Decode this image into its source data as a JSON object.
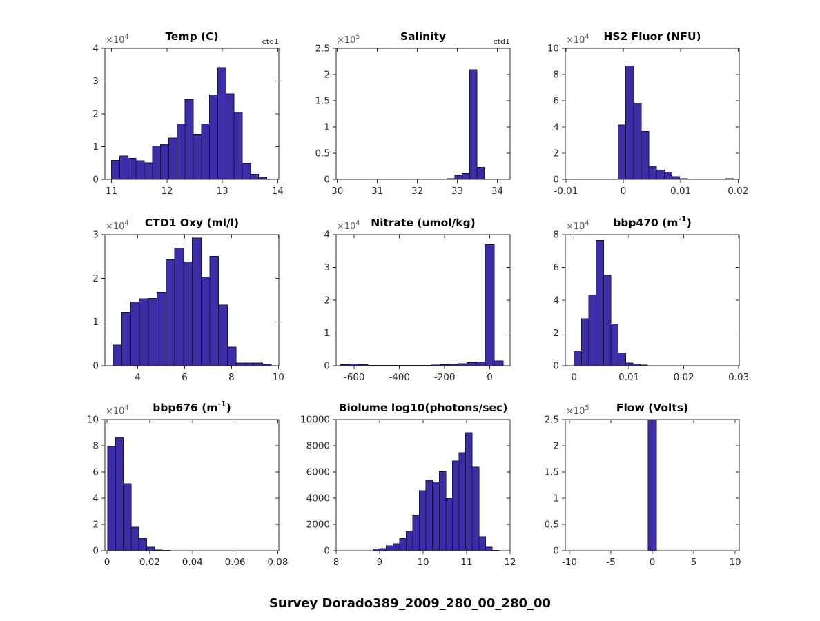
{
  "figure": {
    "title": "Survey Dorado389_2009_280_00_280_00"
  },
  "colors": {
    "bar_fill": "#3b2da6",
    "bar_edge": "#1a1440",
    "axis": "#2b2b2b",
    "tick_label": "#2b2b2b",
    "exponent": "#5a5a5a",
    "corner_label": "#2b2b2b",
    "title": "#000000",
    "background": "#ffffff"
  },
  "chart_data": [
    {
      "type": "bar",
      "name": "temp-c",
      "title": {
        "pre": "Temp (C)",
        "sup": "",
        "post": ""
      },
      "corner_label": "ctd1",
      "y_exponent": {
        "base": "×10",
        "power": "4"
      },
      "xlim": [
        10.88,
        14.02
      ],
      "ylim": [
        0,
        4
      ],
      "xticks": {
        "values": [
          11,
          12,
          13,
          14
        ],
        "labels": [
          "11",
          "12",
          "13",
          "14"
        ]
      },
      "yticks": {
        "values": [
          0,
          1,
          2,
          3,
          4
        ],
        "labels": [
          "0",
          "1",
          "2",
          "3",
          "4"
        ]
      },
      "bin_width": 0.1475,
      "bars": [
        [
          11.0,
          0.58
        ],
        [
          11.1475,
          0.72
        ],
        [
          11.295,
          0.64
        ],
        [
          11.4425,
          0.57
        ],
        [
          11.59,
          0.51
        ],
        [
          11.7375,
          1.02
        ],
        [
          11.885,
          1.07
        ],
        [
          12.0325,
          1.26
        ],
        [
          12.18,
          1.7
        ],
        [
          12.3275,
          2.43
        ],
        [
          12.475,
          1.38
        ],
        [
          12.6225,
          1.7
        ],
        [
          12.77,
          2.58
        ],
        [
          12.9175,
          3.41
        ],
        [
          13.065,
          2.61
        ],
        [
          13.2125,
          2.05
        ],
        [
          13.36,
          0.5
        ],
        [
          13.5075,
          0.16
        ],
        [
          13.655,
          0.06
        ],
        [
          13.8025,
          0.015
        ]
      ]
    },
    {
      "type": "bar",
      "name": "salinity",
      "title": {
        "pre": "Salinity",
        "sup": "",
        "post": ""
      },
      "corner_label": "ctd1",
      "y_exponent": {
        "base": "×10",
        "power": "5"
      },
      "xlim": [
        29.97,
        34.32
      ],
      "ylim": [
        0,
        2.5
      ],
      "xticks": {
        "values": [
          30,
          31,
          32,
          33,
          34
        ],
        "labels": [
          "30",
          "31",
          "32",
          "33",
          "34"
        ]
      },
      "yticks": {
        "values": [
          0,
          0.5,
          1,
          1.5,
          2,
          2.5
        ],
        "labels": [
          "0",
          "0.5",
          "1",
          "1.5",
          "2",
          "2.5"
        ]
      },
      "bin_width": 0.183,
      "bars": [
        [
          32.76,
          0.015
        ],
        [
          32.943,
          0.08
        ],
        [
          33.126,
          0.11
        ],
        [
          33.309,
          2.09
        ],
        [
          33.492,
          0.23
        ]
      ]
    },
    {
      "type": "bar",
      "name": "hs2-fluor-nfu",
      "title": {
        "pre": "HS2 Fluor (NFU)",
        "sup": "",
        "post": ""
      },
      "corner_label": "",
      "y_exponent": {
        "base": "×10",
        "power": "4"
      },
      "xlim": [
        -0.0101,
        0.0202
      ],
      "ylim": [
        0,
        10
      ],
      "xticks": {
        "values": [
          -0.01,
          0,
          0.01,
          0.02
        ],
        "labels": [
          "-0.01",
          "0",
          "0.01",
          "0.02"
        ]
      },
      "yticks": {
        "values": [
          0,
          2,
          4,
          6,
          8,
          10
        ],
        "labels": [
          "0",
          "2",
          "4",
          "6",
          "8",
          "10"
        ]
      },
      "bin_width": 0.00134,
      "bars": [
        [
          -0.0009,
          4.16
        ],
        [
          0.00044,
          8.65
        ],
        [
          0.00178,
          5.82
        ],
        [
          0.00312,
          3.67
        ],
        [
          0.00446,
          1.0
        ],
        [
          0.0058,
          0.7
        ],
        [
          0.00714,
          0.56
        ],
        [
          0.00848,
          0.21
        ],
        [
          0.00982,
          0.06
        ],
        [
          0.01786,
          0.05
        ]
      ]
    },
    {
      "type": "bar",
      "name": "ctd1-oxy-ml-l",
      "title": {
        "pre": "CTD1 Oxy (ml/l)",
        "sup": "",
        "post": ""
      },
      "corner_label": "",
      "y_exponent": {
        "base": "×10",
        "power": "4"
      },
      "xlim": [
        2.6,
        10.02
      ],
      "ylim": [
        0,
        3
      ],
      "xticks": {
        "values": [
          4,
          6,
          8,
          10
        ],
        "labels": [
          "4",
          "6",
          "8",
          "10"
        ]
      },
      "yticks": {
        "values": [
          0,
          1,
          2,
          3
        ],
        "labels": [
          "0",
          "1",
          "2",
          "3"
        ]
      },
      "bin_width": 0.375,
      "bars": [
        [
          2.95,
          0.47
        ],
        [
          3.325,
          1.22
        ],
        [
          3.7,
          1.46
        ],
        [
          4.075,
          1.53
        ],
        [
          4.45,
          1.54
        ],
        [
          4.825,
          1.68
        ],
        [
          5.2,
          2.42
        ],
        [
          5.575,
          2.69
        ],
        [
          5.95,
          2.38
        ],
        [
          6.325,
          2.92
        ],
        [
          6.7,
          2.03
        ],
        [
          7.075,
          2.5
        ],
        [
          7.45,
          1.39
        ],
        [
          7.825,
          0.43
        ],
        [
          8.2,
          0.06
        ],
        [
          8.575,
          0.06
        ],
        [
          8.95,
          0.06
        ],
        [
          9.325,
          0.03
        ]
      ]
    },
    {
      "type": "bar",
      "name": "nitrate-umol-kg",
      "title": {
        "pre": "Nitrate (umol/kg)",
        "sup": "",
        "post": ""
      },
      "corner_label": "",
      "y_exponent": {
        "base": "×10",
        "power": "4"
      },
      "xlim": [
        -680,
        90
      ],
      "ylim": [
        0,
        4
      ],
      "xticks": {
        "values": [
          -600,
          -400,
          -200,
          0
        ],
        "labels": [
          "-600",
          "-400",
          "-200",
          "0"
        ]
      },
      "yticks": {
        "values": [
          0,
          1,
          2,
          3,
          4
        ],
        "labels": [
          "0",
          "1",
          "2",
          "3",
          "4"
        ]
      },
      "bin_width": 40,
      "bars": [
        [
          -660,
          0.035
        ],
        [
          -620,
          0.055
        ],
        [
          -580,
          0.035
        ],
        [
          -540,
          0.012
        ],
        [
          -500,
          0.012
        ],
        [
          -460,
          0.012
        ],
        [
          -420,
          0.012
        ],
        [
          -380,
          0.012
        ],
        [
          -340,
          0.012
        ],
        [
          -300,
          0.015
        ],
        [
          -260,
          0.02
        ],
        [
          -220,
          0.03
        ],
        [
          -180,
          0.045
        ],
        [
          -140,
          0.06
        ],
        [
          -100,
          0.09
        ],
        [
          -60,
          0.12
        ],
        [
          -20,
          3.7
        ],
        [
          20,
          0.15
        ]
      ]
    },
    {
      "type": "bar",
      "name": "bbp470-m-1",
      "title": {
        "pre": "bbp470 (m",
        "sup": "-1",
        "post": ")"
      },
      "corner_label": "",
      "y_exponent": {
        "base": "×10",
        "power": "4"
      },
      "xlim": [
        -0.0016,
        0.0301
      ],
      "ylim": [
        0,
        8
      ],
      "xticks": {
        "values": [
          0,
          0.01,
          0.02,
          0.03
        ],
        "labels": [
          "0",
          "0.01",
          "0.02",
          "0.03"
        ]
      },
      "yticks": {
        "values": [
          0,
          2,
          4,
          6,
          8
        ],
        "labels": [
          "0",
          "2",
          "4",
          "6",
          "8"
        ]
      },
      "bin_width": 0.00134,
      "bars": [
        [
          0.0,
          0.91
        ],
        [
          0.00134,
          2.87
        ],
        [
          0.00268,
          4.31
        ],
        [
          0.00402,
          7.65
        ],
        [
          0.00536,
          5.52
        ],
        [
          0.0067,
          2.55
        ],
        [
          0.00804,
          0.77
        ],
        [
          0.00938,
          0.17
        ],
        [
          0.01072,
          0.11
        ],
        [
          0.01206,
          0.035
        ]
      ]
    },
    {
      "type": "bar",
      "name": "bbp676-m-1",
      "title": {
        "pre": "bbp676 (m",
        "sup": "-1",
        "post": ")"
      },
      "corner_label": "",
      "y_exponent": {
        "base": "×10",
        "power": "4"
      },
      "xlim": [
        -0.001,
        0.0805
      ],
      "ylim": [
        0,
        10
      ],
      "xticks": {
        "values": [
          0,
          0.02,
          0.04,
          0.06,
          0.08
        ],
        "labels": [
          "0",
          "0.02",
          "0.04",
          "0.06",
          "0.08"
        ]
      },
      "yticks": {
        "values": [
          0,
          2,
          4,
          6,
          8,
          10
        ],
        "labels": [
          "0",
          "2",
          "4",
          "6",
          "8",
          "10"
        ]
      },
      "bin_width": 0.00365,
      "bars": [
        [
          0.0003,
          7.95
        ],
        [
          0.00395,
          8.62
        ],
        [
          0.0076,
          5.1
        ],
        [
          0.01125,
          1.78
        ],
        [
          0.0149,
          0.91
        ],
        [
          0.01855,
          0.26
        ],
        [
          0.0222,
          0.05
        ],
        [
          0.02585,
          0.03
        ]
      ]
    },
    {
      "type": "bar",
      "name": "biolume-log10-photons-sec",
      "title": {
        "pre": "Biolume log10(photons/sec)",
        "sup": "",
        "post": ""
      },
      "corner_label": "",
      "y_exponent": null,
      "xlim": [
        8,
        12
      ],
      "ylim": [
        0,
        10000
      ],
      "xticks": {
        "values": [
          8,
          9,
          10,
          11,
          12
        ],
        "labels": [
          "8",
          "9",
          "10",
          "11",
          "12"
        ]
      },
      "yticks": {
        "values": [
          0,
          2000,
          4000,
          6000,
          8000,
          10000
        ],
        "labels": [
          "0",
          "2000",
          "4000",
          "6000",
          "8000",
          "10000"
        ]
      },
      "bin_width": 0.152,
      "bars": [
        [
          8.85,
          140
        ],
        [
          9.002,
          170
        ],
        [
          9.154,
          380
        ],
        [
          9.306,
          520
        ],
        [
          9.458,
          920
        ],
        [
          9.61,
          1480
        ],
        [
          9.762,
          2650
        ],
        [
          9.914,
          4580
        ],
        [
          10.066,
          5380
        ],
        [
          10.218,
          5240
        ],
        [
          10.37,
          6030
        ],
        [
          10.522,
          3980
        ],
        [
          10.674,
          6850
        ],
        [
          10.826,
          7480
        ],
        [
          10.978,
          9000
        ],
        [
          11.13,
          6380
        ],
        [
          11.282,
          1050
        ],
        [
          11.434,
          260
        ],
        [
          11.586,
          30
        ]
      ]
    },
    {
      "type": "bar",
      "name": "flow-volts",
      "title": {
        "pre": "Flow (Volts)",
        "sup": "",
        "post": ""
      },
      "corner_label": "",
      "y_exponent": {
        "base": "×10",
        "power": "5"
      },
      "xlim": [
        -10.5,
        10.5
      ],
      "ylim": [
        0,
        2.5
      ],
      "xticks": {
        "values": [
          -10,
          -5,
          0,
          5,
          10
        ],
        "labels": [
          "-10",
          "-5",
          "0",
          "5",
          "10"
        ]
      },
      "yticks": {
        "values": [
          0,
          0.5,
          1,
          1.5,
          2,
          2.5
        ],
        "labels": [
          "0",
          "0.5",
          "1",
          "1.5",
          "2",
          "2.5"
        ]
      },
      "bin_width": 1,
      "bars": [
        [
          -0.5,
          2.5
        ]
      ]
    }
  ]
}
